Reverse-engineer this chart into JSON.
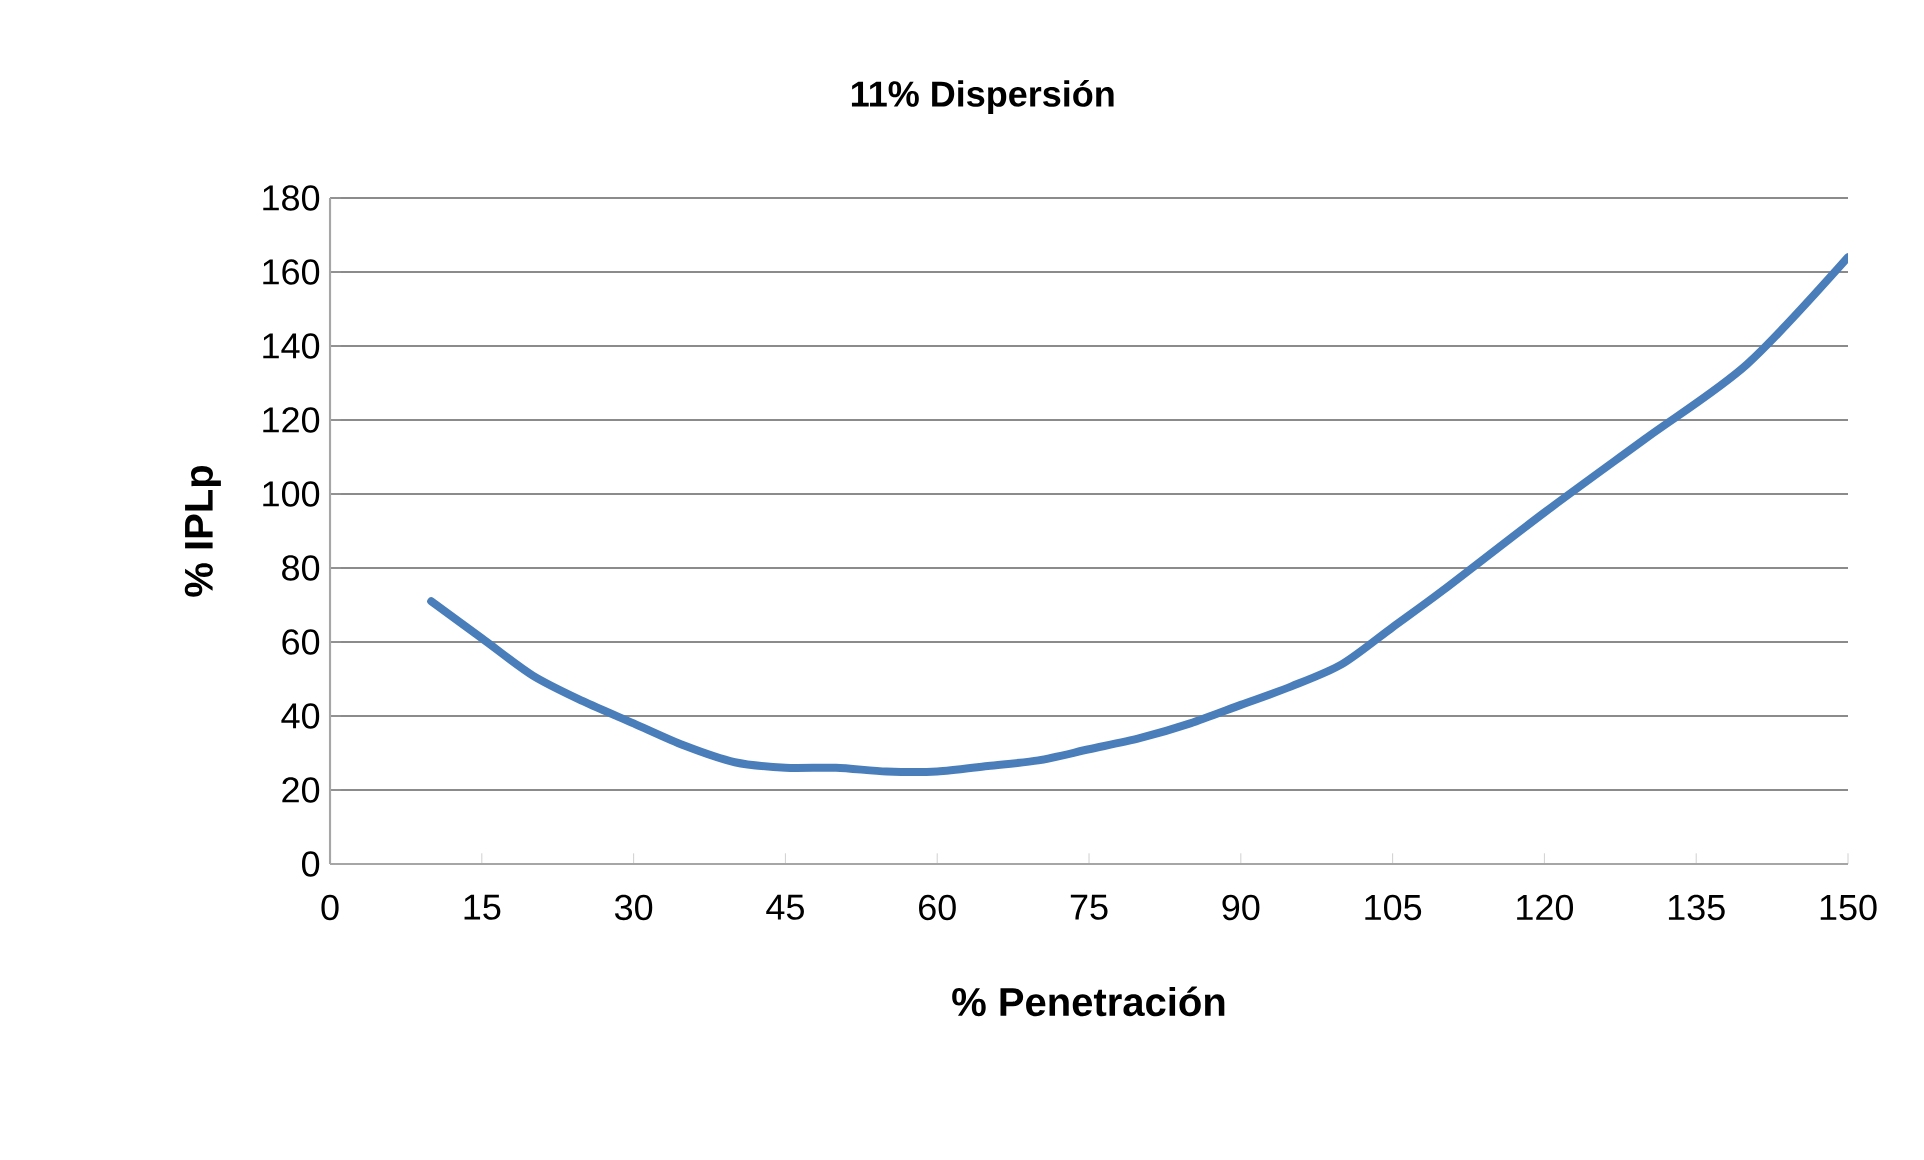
{
  "chart_data": {
    "type": "line",
    "title": "11% Dispersión",
    "xlabel": "% Penetración",
    "ylabel": "% IPLp",
    "x": [
      10,
      15,
      20,
      25,
      30,
      35,
      40,
      45,
      50,
      55,
      60,
      65,
      70,
      75,
      80,
      85,
      90,
      95,
      100,
      105,
      110,
      120,
      130,
      140,
      150
    ],
    "series": [
      {
        "color": "#4a7ebb",
        "values": [
          71,
          61,
          51,
          44,
          38,
          32,
          27.5,
          26,
          26,
          25,
          25,
          26.5,
          28,
          31,
          34,
          38,
          43,
          48,
          54,
          64,
          74,
          95,
          115,
          135,
          164
        ]
      }
    ],
    "xlim": [
      0,
      150
    ],
    "xticks": [
      0,
      15,
      30,
      45,
      60,
      75,
      90,
      105,
      120,
      135,
      150
    ],
    "ylim": [
      0,
      180
    ],
    "yticks": [
      0,
      20,
      40,
      60,
      80,
      100,
      120,
      140,
      160,
      180
    ],
    "grid": "y",
    "marker": "none",
    "line_style": "solid"
  }
}
